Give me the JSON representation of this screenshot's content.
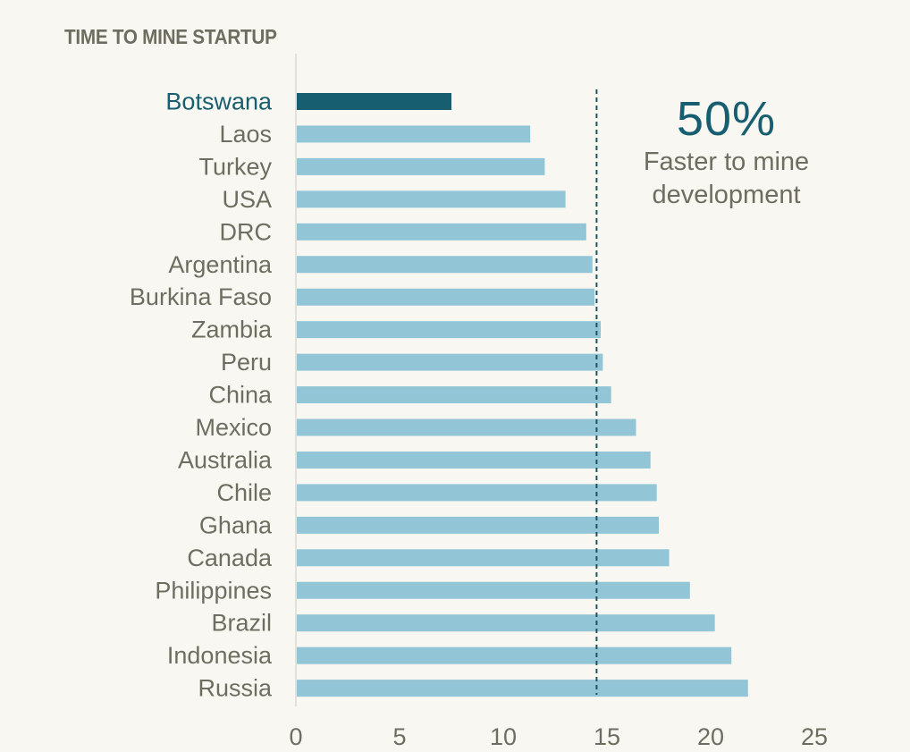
{
  "chart_data": {
    "type": "bar",
    "orientation": "horizontal",
    "title": "TIME TO MINE STARTUP",
    "categories": [
      "Botswana",
      "Laos",
      "Turkey",
      "USA",
      "DRC",
      "Argentina",
      "Burkina Faso",
      "Zambia",
      "Peru",
      "China",
      "Mexico",
      "Australia",
      "Chile",
      "Ghana",
      "Canada",
      "Philippines",
      "Brazil",
      "Indonesia",
      "Russia"
    ],
    "values": [
      7.5,
      11.3,
      12.0,
      13.0,
      14.0,
      14.3,
      14.4,
      14.7,
      14.8,
      15.2,
      16.4,
      17.1,
      17.4,
      17.5,
      18.0,
      19.0,
      20.2,
      21.0,
      21.8
    ],
    "highlight_category": "Botswana",
    "reference_line": 14.5,
    "xlim": [
      0,
      25
    ],
    "xticks": [
      0,
      5,
      10,
      15,
      20,
      25
    ],
    "grid": false,
    "colors": {
      "highlight": "#175f70",
      "bar": "#92c5d5",
      "label": "#6e6e60",
      "reference": "#1f5360"
    }
  },
  "callout": {
    "value": "50%",
    "text": "Faster to mine development"
  }
}
